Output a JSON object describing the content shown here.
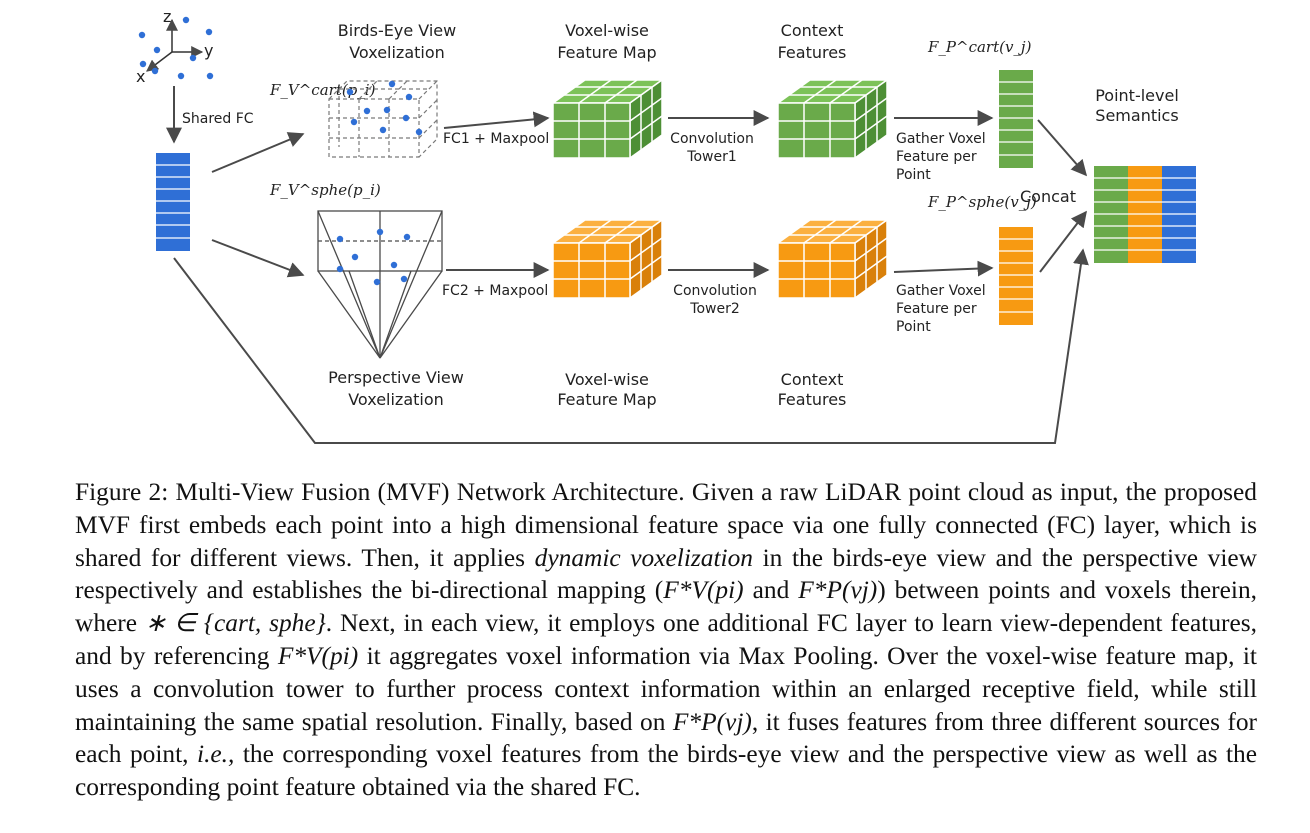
{
  "colors": {
    "blue": "#2f6fd6",
    "green": "#6aaa4a",
    "orange": "#f79a12",
    "line": "#4a4a4a",
    "dashed": "#7a7a7a"
  },
  "axes": {
    "z": "z",
    "y": "y",
    "x": "x"
  },
  "labels": {
    "shared_fc": "Shared FC",
    "bev_title_1": "Birds-Eye View",
    "bev_title_2": "Voxelization",
    "fv_cart": "F_V^cart(p_i)",
    "fv_sphe": "F_V^sphe(p_i)",
    "fp_cart": "F_P^cart(v_j)",
    "fp_sphe": "F_P^sphe(v_j)",
    "voxel_map_top_1": "Voxel-wise",
    "voxel_map_top_2": "Feature Map",
    "context_top_1": "Context",
    "context_top_2": "Features",
    "fc1": "FC1 + Maxpool",
    "fc2": "FC2 + Maxpool",
    "conv1_1": "Convolution",
    "conv1_2": "Tower1",
    "conv2_1": "Convolution",
    "conv2_2": "Tower2",
    "gather_top_1": "Gather Voxel",
    "gather_top_2": "Feature per",
    "gather_top_3": "Point",
    "gather_bot_1": "Gather Voxel",
    "gather_bot_2": "Feature per",
    "gather_bot_3": "Point",
    "concat": "Concat",
    "point_sem_1": "Point-level",
    "point_sem_2": "Semantics",
    "pv_title_1": "Perspective View",
    "pv_title_2": "Voxelization",
    "voxel_map_bot_1": "Voxel-wise",
    "voxel_map_bot_2": "Feature Map",
    "context_bot_1": "Context",
    "context_bot_2": "Features"
  },
  "caption": {
    "prefix": "Figure 2: Multi-View Fusion (MVF) Network Architecture.  Given a raw LiDAR point cloud as input, the proposed MVF first embeds each point into a high dimensional feature space via one fully connected (FC) layer, which is shared for different views. Then, it applies",
    "em1": "dynamic voxelization",
    "part2": "in the birds-eye view and the perspective view respectively and establishes the bi-directional mapping (",
    "math1": "F*V(pi)",
    "part3": "and",
    "math2": "F*P(vj)",
    "part4": ") between points and voxels therein, where",
    "math3": "∗ ∈ {cart, sphe}",
    "part5": ". Next, in each view, it employs one additional FC layer to learn view-dependent features, and by referencing",
    "math4": "F*V(pi)",
    "part6": "it aggregates voxel information via Max Pooling. Over the voxel-wise feature map, it uses a convolution tower to further process context information within an enlarged receptive field, while still maintaining the same spatial resolution. Finally, based on",
    "math5": "F*P(vj)",
    "part7": ", it fuses features from three different sources for each point,",
    "em2": "i.e.,",
    "part8": "the corresponding voxel features from the birds-eye view and the perspective view as well as the corresponding point feature obtained via the shared FC."
  }
}
